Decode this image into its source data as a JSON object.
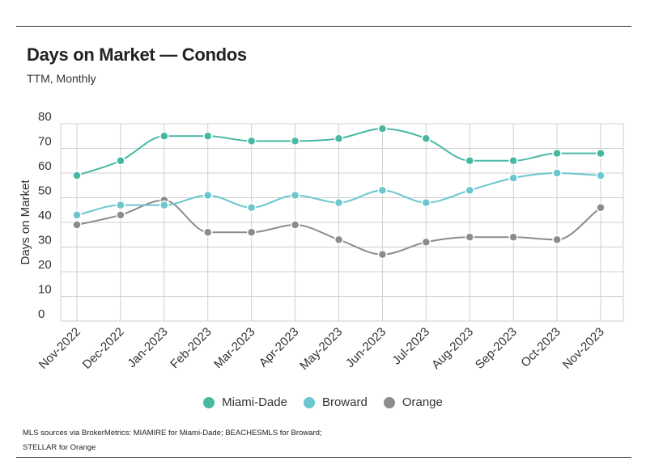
{
  "title": "Days on Market — Condos",
  "subtitle": "TTM, Monthly",
  "footnote": {
    "line1": "MLS sources via BrokerMetrics: MIAMIRE for Miami-Dade; BEACHESMLS for Broward;",
    "line2": "STELLAR for Orange"
  },
  "chart_data": {
    "type": "line",
    "title": "Days on Market — Condos",
    "subtitle": "TTM, Monthly",
    "xlabel": "",
    "ylabel": "Days on Market",
    "ylim": [
      0,
      80
    ],
    "yticks": [
      0,
      10,
      20,
      30,
      40,
      50,
      60,
      70,
      80
    ],
    "grid": true,
    "legend_position": "bottom",
    "categories": [
      "Nov-2022",
      "Dec-2022",
      "Jan-2023",
      "Feb-2023",
      "Mar-2023",
      "Apr-2023",
      "May-2023",
      "Jun-2023",
      "Jul-2023",
      "Aug-2023",
      "Sep-2023",
      "Oct-2023",
      "Nov-2023"
    ],
    "series": [
      {
        "name": "Miami-Dade",
        "color": "#47b9a3",
        "values": [
          59,
          65,
          75,
          75,
          73,
          73,
          74,
          78,
          74,
          65,
          65,
          68,
          68
        ]
      },
      {
        "name": "Broward",
        "color": "#6cc6ce",
        "values": [
          43,
          47,
          47,
          51,
          46,
          51,
          48,
          53,
          48,
          53,
          58,
          60,
          59
        ]
      },
      {
        "name": "Orange",
        "color": "#8c8c8c",
        "values": [
          39,
          43,
          49,
          36,
          36,
          39,
          33,
          27,
          32,
          34,
          34,
          33,
          46
        ]
      }
    ]
  }
}
